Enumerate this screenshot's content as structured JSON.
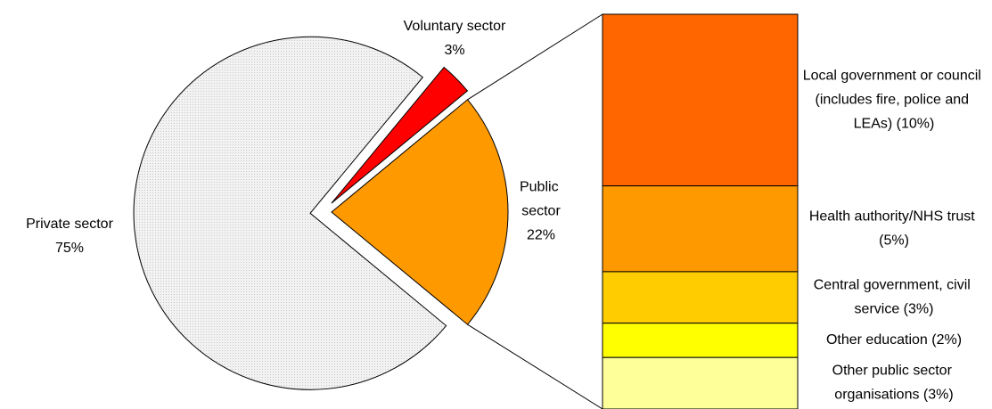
{
  "chart_data": [
    {
      "type": "pie",
      "categories": [
        "Private sector",
        "Public sector",
        "Voluntary sector"
      ],
      "values": [
        75,
        22,
        3
      ],
      "value_labels": [
        "75%",
        "22%",
        "3%"
      ],
      "colors": [
        "#eeeeee",
        "#ff9900",
        "#ff0000"
      ]
    },
    {
      "type": "bar",
      "categories": [
        "Local government or council (includes fire, police and LEAs) (10%)",
        "Health authority/NHS trust (5%)",
        "Central government, civil service (3%)",
        "Other education (2%)",
        "Other public sector organisations (3%)"
      ],
      "values": [
        10,
        5,
        3,
        2,
        3
      ],
      "colors": [
        "#ff6600",
        "#ff9900",
        "#ffcc00",
        "#ffff00",
        "#ffff99"
      ]
    }
  ]
}
